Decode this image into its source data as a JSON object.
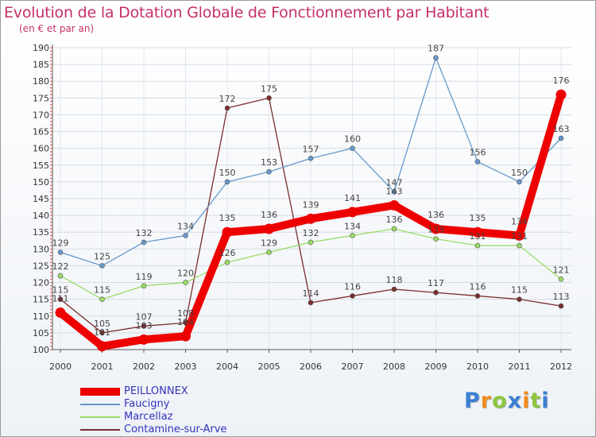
{
  "chart_data": {
    "type": "line",
    "title": "Evolution de la Dotation Globale de Fonctionnement par Habitant",
    "subtitle": "(en € et par an)",
    "xlabel": "",
    "ylabel": "",
    "x": [
      "2000",
      "2001",
      "2002",
      "2003",
      "2004",
      "2005",
      "2006",
      "2007",
      "2008",
      "2009",
      "2010",
      "2011",
      "2012"
    ],
    "ylim": [
      100,
      190
    ],
    "yticks": [
      "100",
      "105",
      "110",
      "115",
      "120",
      "125",
      "130",
      "135",
      "140",
      "145",
      "150",
      "155",
      "160",
      "165",
      "170",
      "175",
      "180",
      "185",
      "190"
    ],
    "legend_position": "bottom-left",
    "series": [
      {
        "name": "PEILLONNEX",
        "color": "#ee0000",
        "values": [
          111,
          101,
          103,
          104,
          135,
          136,
          139,
          141,
          143,
          136,
          135,
          134,
          176
        ]
      },
      {
        "name": "Faucigny",
        "color": "#6699cc",
        "values": [
          129,
          125,
          132,
          134,
          150,
          153,
          157,
          160,
          147,
          187,
          156,
          150,
          163
        ]
      },
      {
        "name": "Marcellaz",
        "color": "#99dd66",
        "values": [
          122,
          115,
          119,
          120,
          126,
          129,
          132,
          134,
          136,
          133,
          131,
          131,
          121
        ]
      },
      {
        "name": "Contamine-sur-Arve",
        "color": "#7a2d2d",
        "values": [
          115,
          105,
          107,
          108,
          172,
          175,
          114,
          116,
          118,
          117,
          116,
          115,
          113
        ]
      }
    ]
  },
  "logo": {
    "letters": [
      "P",
      "r",
      "o",
      "x",
      "i",
      "t",
      "i"
    ],
    "colors": [
      "#3a7fd5",
      "#f28c1e",
      "#8cc63f",
      "#3a7fd5",
      "#f28c1e",
      "#8cc63f",
      "#3a7fd5"
    ]
  }
}
